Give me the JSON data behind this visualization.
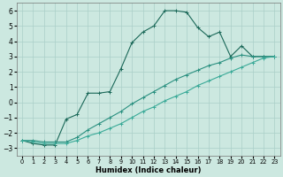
{
  "xlabel": "Humidex (Indice chaleur)",
  "ylabel": "",
  "bg_color": "#cce8e0",
  "grid_color": "#aacfc8",
  "line_color_dark": "#1a6858",
  "line_color_mid": "#2a9080",
  "line_color_light": "#3aaa98",
  "xlim": [
    -0.5,
    23.5
  ],
  "ylim": [
    -3.5,
    6.5
  ],
  "xticks": [
    0,
    1,
    2,
    3,
    4,
    5,
    6,
    7,
    8,
    9,
    10,
    11,
    12,
    13,
    14,
    15,
    16,
    17,
    18,
    19,
    20,
    21,
    22,
    23
  ],
  "yticks": [
    -3,
    -2,
    -1,
    0,
    1,
    2,
    3,
    4,
    5,
    6
  ],
  "line1_x": [
    0,
    1,
    2,
    3,
    4,
    5,
    6,
    7,
    8,
    9,
    10,
    11,
    12,
    13,
    14,
    15,
    16,
    17,
    18,
    19,
    20,
    21,
    22,
    23
  ],
  "line1_y": [
    -2.5,
    -2.7,
    -2.8,
    -2.8,
    -1.1,
    -0.8,
    0.6,
    0.6,
    0.7,
    2.2,
    3.9,
    4.6,
    5.0,
    6.0,
    6.0,
    5.9,
    4.9,
    4.3,
    4.6,
    3.0,
    3.7,
    3.0,
    3.0,
    3.0
  ],
  "line2_x": [
    0,
    1,
    2,
    3,
    4,
    5,
    6,
    7,
    8,
    9,
    10,
    11,
    12,
    13,
    14,
    15,
    16,
    17,
    18,
    19,
    20,
    21,
    22,
    23
  ],
  "line2_y": [
    -2.5,
    -2.5,
    -2.6,
    -2.6,
    -2.6,
    -2.3,
    -1.8,
    -1.4,
    -1.0,
    -0.6,
    -0.1,
    0.3,
    0.7,
    1.1,
    1.5,
    1.8,
    2.1,
    2.4,
    2.6,
    2.9,
    3.1,
    3.0,
    3.0,
    3.0
  ],
  "line3_x": [
    0,
    1,
    2,
    3,
    4,
    5,
    6,
    7,
    8,
    9,
    10,
    11,
    12,
    13,
    14,
    15,
    16,
    17,
    18,
    19,
    20,
    21,
    22,
    23
  ],
  "line3_y": [
    -2.5,
    -2.6,
    -2.7,
    -2.7,
    -2.7,
    -2.5,
    -2.2,
    -2.0,
    -1.7,
    -1.4,
    -1.0,
    -0.6,
    -0.3,
    0.1,
    0.4,
    0.7,
    1.1,
    1.4,
    1.7,
    2.0,
    2.3,
    2.6,
    2.9,
    3.0
  ]
}
